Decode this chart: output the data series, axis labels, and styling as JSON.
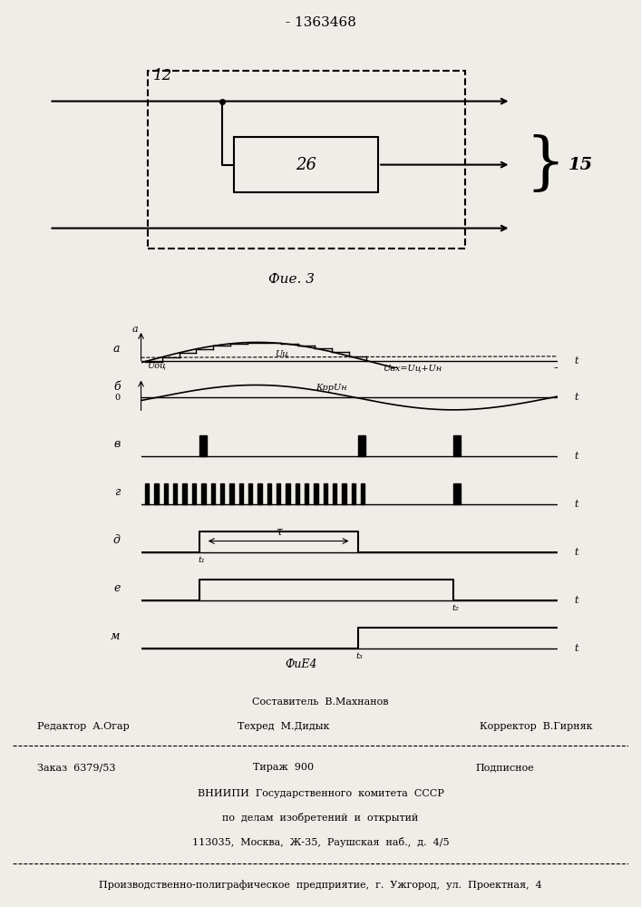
{
  "title": "- 1363468",
  "fig3_label": "12",
  "fig3_box_label": "26",
  "fig3_arrow_label": "15",
  "fig3_caption": "Фие. 3",
  "fig4_caption": "ФиЕ4",
  "panel_a_label": "a",
  "panel_b_label": "б",
  "panel_v_label": "в",
  "panel_g_label": "г",
  "panel_d_label": "д",
  "panel_e_label": "е",
  "panel_m_label": "м",
  "label_Uoc": "Uоц",
  "label_Uc": "Uц",
  "label_Uvx": "Uвх=Uц+Uн",
  "label_KrpUn": "КррUн",
  "label_t1": "t₁",
  "label_t2": "t₂",
  "label_t3": "t₃",
  "label_tau": "τ",
  "footer_line1": "Составитель  В.Махнанов",
  "footer_editor": "Редактор  А.Огар",
  "footer_techred": "Техред  М.Дидык",
  "footer_corrector": "Корректор  В.Гирняк",
  "footer_order": "Заказ  6379/53",
  "footer_tirazh": "Тираж  900",
  "footer_podpis": "Подписное",
  "footer_vniipи": "ВНИИПИ  Государственного  комитета  СССР",
  "footer_po_delam": "по  делам  изобретений  и  открытий",
  "footer_address": "113035,  Москва,  Ж-35,  Раушская  наб.,  д.  4/5",
  "footer_production": "Производственно-полиграфическое  предприятие,  г.  Ужгород,  ул.  Проектная,  4",
  "bg_color": "#f0ede8"
}
